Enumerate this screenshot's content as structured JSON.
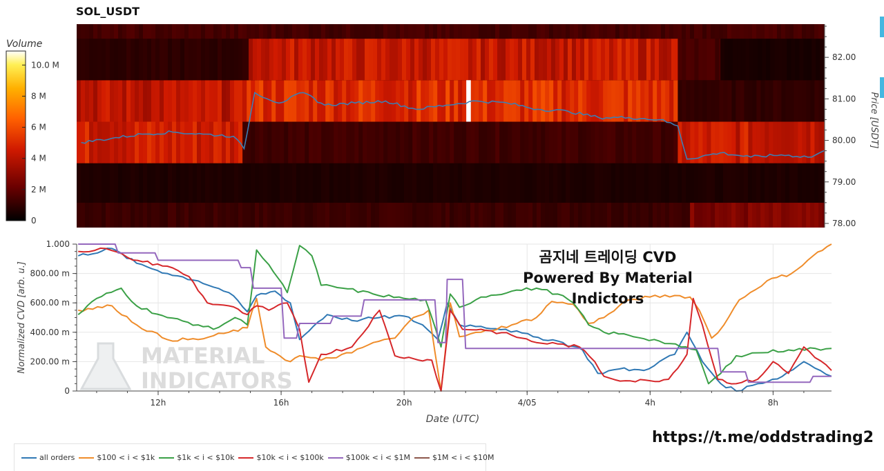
{
  "page_title": "SOL_USDT",
  "cvd_title_line1": "곰지네 트레이딩 CVD",
  "cvd_title_line2": "Powered By Material Indictors",
  "credit_url": "https://t.me/oddstrading2",
  "watermark": "MATERIAL INDICATORS",
  "chart_data": [
    {
      "type": "heatmap",
      "title": "SOL_USDT",
      "colorbar_label": "Volume",
      "colorbar_ticks": [
        {
          "v": 0,
          "label": "0"
        },
        {
          "v": 2,
          "label": "2 M"
        },
        {
          "v": 4,
          "label": "4 M"
        },
        {
          "v": 6,
          "label": "6 M"
        },
        {
          "v": 8,
          "label": "8 M"
        },
        {
          "v": 10,
          "label": "10.0 M"
        }
      ],
      "colorbar_range": [
        0,
        10.9
      ],
      "ylabel": "Price [USDT]",
      "ylim": [
        77.9,
        82.8
      ],
      "yticks": [
        {
          "v": 78,
          "label": "78.00"
        },
        {
          "v": 79,
          "label": "79.00"
        },
        {
          "v": 80,
          "label": "80.00"
        },
        {
          "v": 81,
          "label": "81.00"
        },
        {
          "v": 82,
          "label": "82.00"
        }
      ],
      "time_range": [
        9.35,
        33.9
      ],
      "price_bands": [
        {
          "lo": 77.9,
          "hi": 78.5
        },
        {
          "lo": 78.5,
          "hi": 79.45
        },
        {
          "lo": 79.45,
          "hi": 80.45
        },
        {
          "lo": 80.45,
          "hi": 81.45
        },
        {
          "lo": 81.45,
          "hi": 82.45
        },
        {
          "lo": 82.45,
          "hi": 82.8
        }
      ],
      "volume_segments": [
        {
          "band": 0,
          "t0": 9.35,
          "t1": 29.5,
          "v": 1.2
        },
        {
          "band": 0,
          "t0": 29.5,
          "t1": 33.9,
          "v": 2.6
        },
        {
          "band": 1,
          "t0": 9.35,
          "t1": 33.9,
          "v": 0.6
        },
        {
          "band": 2,
          "t0": 9.35,
          "t1": 14.8,
          "v": 4.6
        },
        {
          "band": 2,
          "t0": 14.8,
          "t1": 29.1,
          "v": 1.3
        },
        {
          "band": 2,
          "t0": 29.1,
          "t1": 33.9,
          "v": 4.4
        },
        {
          "band": 3,
          "t0": 9.35,
          "t1": 14.8,
          "v": 4.1
        },
        {
          "band": 3,
          "t0": 14.8,
          "t1": 29.1,
          "v": 5.1
        },
        {
          "band": 3,
          "t0": 29.1,
          "t1": 33.9,
          "v": 1.0
        },
        {
          "band": 4,
          "t0": 9.35,
          "t1": 15.0,
          "v": 0.9
        },
        {
          "band": 4,
          "t0": 15.0,
          "t1": 29.1,
          "v": 4.3
        },
        {
          "band": 4,
          "t0": 29.1,
          "t1": 30.5,
          "v": 1.4
        },
        {
          "band": 4,
          "t0": 30.5,
          "t1": 33.9,
          "v": 0.5
        },
        {
          "band": 5,
          "t0": 9.35,
          "t1": 33.9,
          "v": 1.4
        }
      ],
      "highlights": [
        {
          "band": 3,
          "t0": 22.15,
          "t1": 22.3,
          "v": 10.9
        }
      ],
      "price_line": {
        "name": "Price",
        "color": "#3d7fb5",
        "t": [
          9.5,
          10.5,
          11.5,
          12.5,
          13.5,
          14.5,
          14.85,
          15.2,
          16.0,
          16.8,
          17.5,
          18.5,
          19.5,
          20.5,
          21.5,
          22.5,
          23.5,
          24.5,
          25.5,
          26.5,
          27.5,
          28.5,
          29.1,
          29.4,
          30.5,
          31.5,
          32.5,
          33.5,
          33.9
        ],
        "price": [
          79.95,
          80.05,
          80.15,
          80.2,
          80.15,
          80.1,
          79.8,
          81.15,
          80.9,
          81.15,
          80.85,
          80.9,
          80.95,
          80.75,
          80.85,
          80.95,
          80.9,
          80.75,
          80.7,
          80.55,
          80.55,
          80.5,
          80.35,
          79.55,
          79.7,
          79.6,
          79.65,
          79.6,
          79.75
        ]
      }
    },
    {
      "type": "line",
      "title": "",
      "xlabel": "Date (UTC)",
      "ylabel": "Normalized CVD [arb. u.]",
      "ylim": [
        0,
        1.0
      ],
      "yticks": [
        {
          "v": 0,
          "label": "0"
        },
        {
          "v": 0.2,
          "label": "200.00 m"
        },
        {
          "v": 0.4,
          "label": "400.00 m"
        },
        {
          "v": 0.6,
          "label": "600.00 m"
        },
        {
          "v": 0.8,
          "label": "800.00 m"
        },
        {
          "v": 1.0,
          "label": "1.000"
        }
      ],
      "xlim": [
        9.35,
        33.9
      ],
      "xticks": [
        {
          "v": 12,
          "label": "12h"
        },
        {
          "v": 16,
          "label": "16h"
        },
        {
          "v": 20,
          "label": "20h"
        },
        {
          "v": 24,
          "label": "4/05"
        },
        {
          "v": 28,
          "label": "4h"
        },
        {
          "v": 32,
          "label": "8h"
        }
      ],
      "grid": true,
      "legend_position": "bottom-left",
      "series": [
        {
          "name": "all orders",
          "color": "#2f78b4",
          "x": [
            9.4,
            10.5,
            11.3,
            12.3,
            13.3,
            14.3,
            14.9,
            15.2,
            15.8,
            16.3,
            16.6,
            17.2,
            17.5,
            18.3,
            19.2,
            20.0,
            20.6,
            21.1,
            21.4,
            21.8,
            22.5,
            23.3,
            24.2,
            25.0,
            25.8,
            26.3,
            27.0,
            27.8,
            28.3,
            28.8,
            29.2,
            29.7,
            30.3,
            30.8,
            31.5,
            32.3,
            33.0,
            33.9
          ],
          "values": [
            0.92,
            0.97,
            0.87,
            0.8,
            0.75,
            0.67,
            0.54,
            0.65,
            0.68,
            0.6,
            0.35,
            0.47,
            0.52,
            0.48,
            0.5,
            0.51,
            0.45,
            0.35,
            0.6,
            0.45,
            0.44,
            0.42,
            0.37,
            0.34,
            0.28,
            0.12,
            0.15,
            0.14,
            0.2,
            0.25,
            0.4,
            0.2,
            0.05,
            0.0,
            0.05,
            0.1,
            0.2,
            0.1
          ]
        },
        {
          "name": "$100 < i < $1k",
          "color": "#ef8c2a",
          "x": [
            9.4,
            10.5,
            11.3,
            12.3,
            13.3,
            14.3,
            14.9,
            15.2,
            15.5,
            15.8,
            16.3,
            16.6,
            17.3,
            18.3,
            19.0,
            19.7,
            20.3,
            20.8,
            21.2,
            21.5,
            21.8,
            22.5,
            23.5,
            24.3,
            24.8,
            25.5,
            26.0,
            26.5,
            27.3,
            28.0,
            28.8,
            29.3,
            29.6,
            30.0,
            30.4,
            30.9,
            31.8,
            32.6,
            33.3,
            33.9
          ],
          "values": [
            0.55,
            0.58,
            0.45,
            0.35,
            0.35,
            0.4,
            0.43,
            0.63,
            0.3,
            0.26,
            0.2,
            0.24,
            0.21,
            0.26,
            0.33,
            0.36,
            0.5,
            0.55,
            0.0,
            0.6,
            0.37,
            0.4,
            0.45,
            0.5,
            0.61,
            0.59,
            0.46,
            0.5,
            0.62,
            0.64,
            0.65,
            0.64,
            0.55,
            0.36,
            0.45,
            0.62,
            0.75,
            0.8,
            0.92,
            1.0
          ]
        },
        {
          "name": "$1k < i < $10k",
          "color": "#3aa046",
          "x": [
            9.4,
            10.0,
            10.8,
            11.3,
            12.3,
            13.3,
            13.8,
            14.5,
            14.9,
            15.2,
            15.6,
            16.2,
            16.6,
            17.0,
            17.3,
            18.0,
            19.0,
            20.0,
            20.7,
            21.2,
            21.5,
            21.8,
            22.5,
            23.5,
            24.3,
            25.0,
            25.5,
            26.0,
            26.5,
            27.3,
            28.3,
            29.0,
            29.5,
            29.9,
            30.3,
            30.8,
            31.5,
            32.5,
            33.9
          ],
          "values": [
            0.52,
            0.63,
            0.7,
            0.58,
            0.5,
            0.45,
            0.42,
            0.5,
            0.45,
            0.96,
            0.86,
            0.67,
            0.99,
            0.92,
            0.72,
            0.7,
            0.66,
            0.63,
            0.62,
            0.3,
            0.66,
            0.57,
            0.64,
            0.68,
            0.7,
            0.66,
            0.6,
            0.45,
            0.4,
            0.38,
            0.34,
            0.3,
            0.28,
            0.05,
            0.12,
            0.24,
            0.26,
            0.28,
            0.29
          ]
        },
        {
          "name": "$10k < i < $100k",
          "color": "#d6272a",
          "x": [
            9.4,
            10.3,
            11.0,
            11.5,
            12.3,
            13.0,
            13.6,
            14.3,
            14.9,
            15.2,
            15.6,
            16.2,
            16.6,
            16.9,
            17.3,
            18.3,
            19.2,
            19.7,
            20.3,
            20.9,
            21.2,
            21.5,
            21.9,
            22.5,
            23.5,
            24.3,
            25.0,
            25.7,
            26.2,
            26.5,
            27.2,
            28.0,
            28.6,
            29.2,
            29.4,
            29.7,
            30.2,
            30.8,
            31.5,
            32.0,
            32.5,
            33.0,
            33.9
          ],
          "values": [
            0.95,
            0.97,
            0.91,
            0.88,
            0.85,
            0.78,
            0.6,
            0.58,
            0.52,
            0.58,
            0.55,
            0.6,
            0.42,
            0.06,
            0.25,
            0.3,
            0.55,
            0.24,
            0.22,
            0.21,
            0.0,
            0.55,
            0.42,
            0.42,
            0.38,
            0.33,
            0.32,
            0.3,
            0.2,
            0.1,
            0.07,
            0.07,
            0.08,
            0.25,
            0.63,
            0.45,
            0.08,
            0.05,
            0.08,
            0.2,
            0.12,
            0.3,
            0.14
          ]
        },
        {
          "name": "$100k < i < $1M",
          "color": "#9467bd",
          "x": [
            9.4,
            10.6,
            10.7,
            11.9,
            12.0,
            14.6,
            14.7,
            15.0,
            15.1,
            16.0,
            16.1,
            16.5,
            16.6,
            17.6,
            17.7,
            18.6,
            18.7,
            21.0,
            21.1,
            21.35,
            21.4,
            21.9,
            22.0,
            30.2,
            30.3,
            31.1,
            31.2,
            33.2,
            33.3,
            33.9
          ],
          "values": [
            1.0,
            1.0,
            0.94,
            0.94,
            0.89,
            0.89,
            0.84,
            0.84,
            0.7,
            0.7,
            0.36,
            0.36,
            0.46,
            0.46,
            0.51,
            0.51,
            0.62,
            0.62,
            0.33,
            0.33,
            0.76,
            0.76,
            0.29,
            0.29,
            0.13,
            0.13,
            0.06,
            0.06,
            0.1,
            0.1
          ]
        },
        {
          "name": "$1M < i < $10M",
          "color": "#8c564b",
          "x": [],
          "values": []
        }
      ]
    }
  ]
}
